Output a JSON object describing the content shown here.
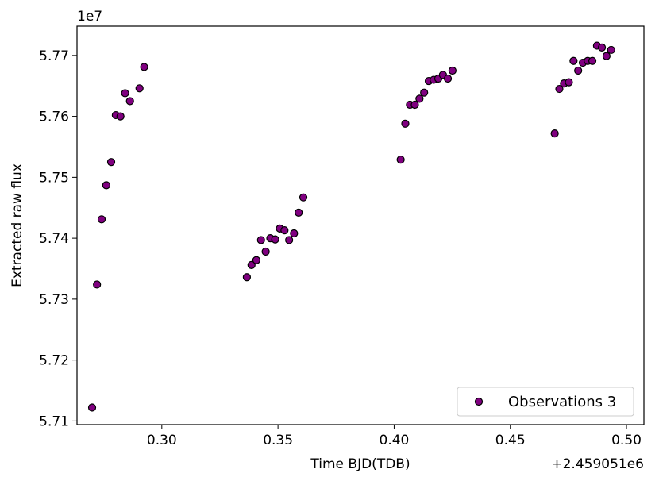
{
  "chart_data": {
    "type": "scatter",
    "xlabel": "Time BJD(TDB)",
    "ylabel": "Extracted raw flux",
    "x_offset_label": "+2.459051e6",
    "y_scale_label": "1e7",
    "xlim": [
      0.2635,
      0.5075
    ],
    "ylim": [
      5.7094,
      5.7748
    ],
    "x_ticks": [
      0.3,
      0.35,
      0.4,
      0.45,
      0.5
    ],
    "x_tick_labels": [
      "0.30",
      "0.35",
      "0.40",
      "0.45",
      "0.50"
    ],
    "y_ticks": [
      5.71,
      5.72,
      5.73,
      5.74,
      5.75,
      5.76,
      5.77
    ],
    "y_tick_labels": [
      "5.71",
      "5.72",
      "5.73",
      "5.74",
      "5.75",
      "5.76",
      "5.77"
    ],
    "grid": false,
    "legend_position": "lower-right",
    "colors": {
      "marker_fill": "#800080",
      "marker_edge": "#000000"
    },
    "series": [
      {
        "name": "Observations 3",
        "x": [
          0.27,
          0.2721,
          0.2741,
          0.2761,
          0.2782,
          0.2802,
          0.2822,
          0.2842,
          0.2863,
          0.2904,
          0.2924,
          0.3366,
          0.3386,
          0.3407,
          0.3427,
          0.3447,
          0.3467,
          0.3488,
          0.3508,
          0.3528,
          0.3548,
          0.3569,
          0.3589,
          0.3609,
          0.4028,
          0.4048,
          0.4068,
          0.4089,
          0.4109,
          0.4129,
          0.4149,
          0.417,
          0.419,
          0.421,
          0.4231,
          0.4251,
          0.4691,
          0.4711,
          0.4731,
          0.4752,
          0.4772,
          0.4792,
          0.4812,
          0.4833,
          0.4853,
          0.4873,
          0.4894,
          0.4914,
          0.4934
        ],
        "y": [
          5.7122,
          5.7324,
          5.7431,
          5.7487,
          5.7525,
          5.7602,
          5.76,
          5.7638,
          5.7625,
          5.7646,
          5.7681,
          5.7336,
          5.7356,
          5.7364,
          5.7397,
          5.7378,
          5.74,
          5.7398,
          5.7416,
          5.7413,
          5.7397,
          5.7408,
          5.7442,
          5.7467,
          5.7529,
          5.7588,
          5.7619,
          5.7619,
          5.7629,
          5.7639,
          5.7658,
          5.766,
          5.7662,
          5.7668,
          5.7662,
          5.7675,
          5.7572,
          5.7645,
          5.7654,
          5.7656,
          5.7691,
          5.7675,
          5.7688,
          5.7691,
          5.7691,
          5.7716,
          5.7713,
          5.7699,
          5.7709
        ]
      }
    ]
  }
}
